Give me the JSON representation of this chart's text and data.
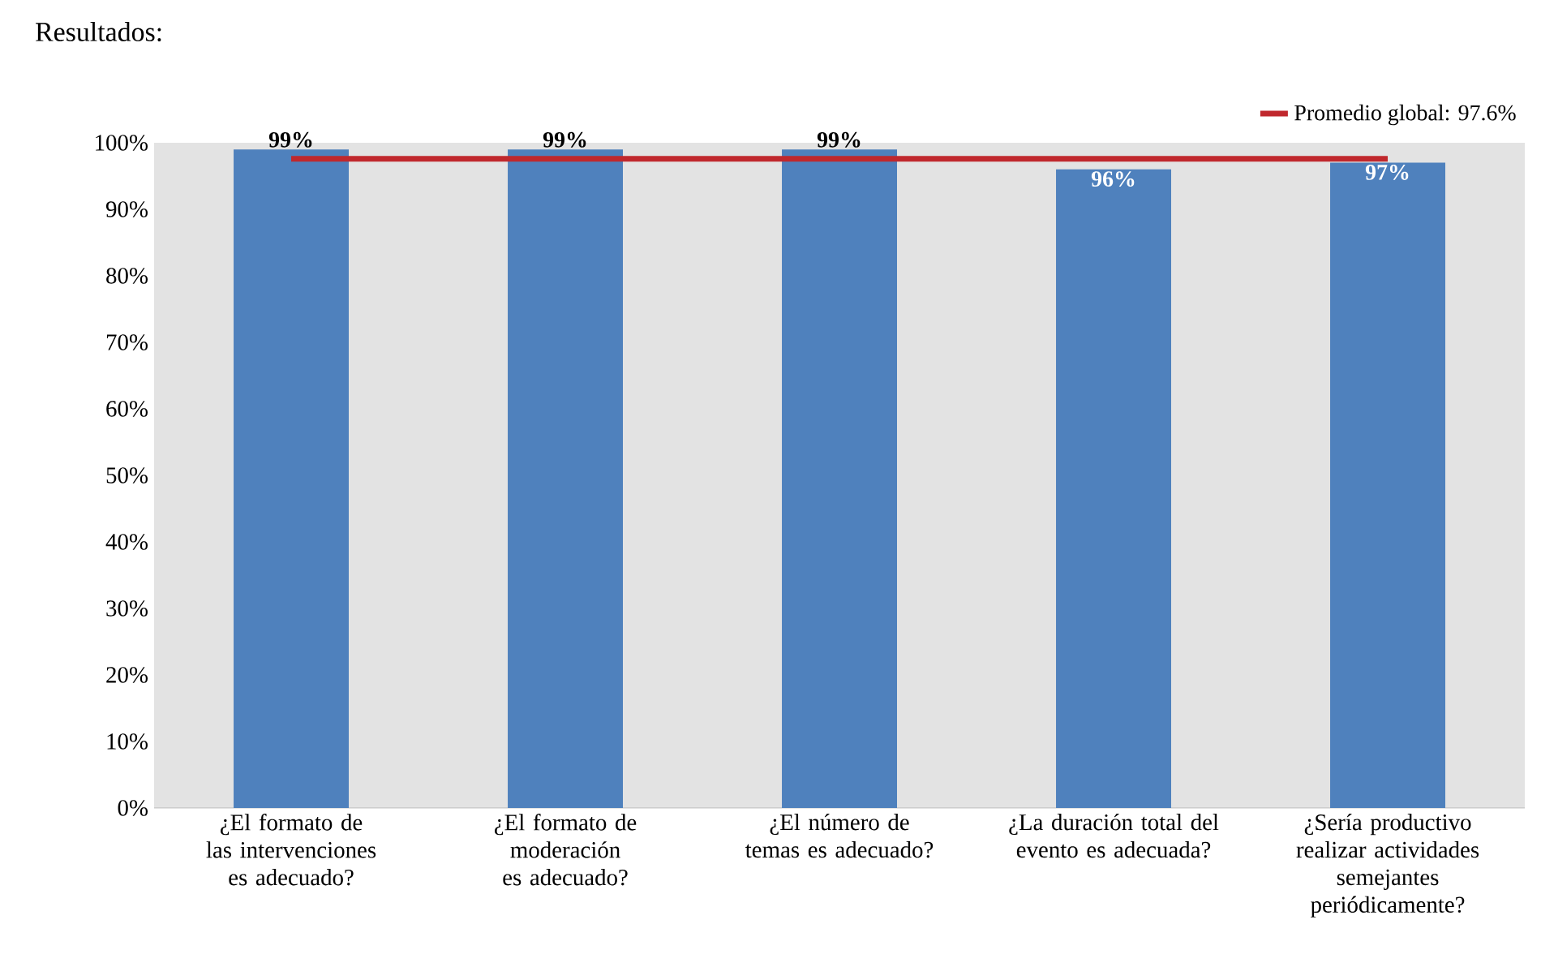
{
  "chart_data": {
    "type": "bar",
    "title": "Resultados:",
    "categories": [
      "¿El formato de las intervenciones es adecuado?",
      "¿El formato de moderación es adecuado?",
      "¿El número de temas es adecuado?",
      "¿La duración total del evento es adecuada?",
      "¿Sería productivo realizar actividades semejantes periódicamente?"
    ],
    "values": [
      99,
      99,
      99,
      96,
      97
    ],
    "color": "#4f81bd",
    "value_labels": [
      "99%",
      "99%",
      "99%",
      "96%",
      "97%"
    ],
    "ylim": [
      0,
      100
    ],
    "yticks": [
      {
        "value": 0,
        "label": "0%"
      },
      {
        "value": 10,
        "label": "10%"
      },
      {
        "value": 20,
        "label": "20%"
      },
      {
        "value": 30,
        "label": "30%"
      },
      {
        "value": 40,
        "label": "40%"
      },
      {
        "value": 50,
        "label": "50%"
      },
      {
        "value": 60,
        "label": "60%"
      },
      {
        "value": 70,
        "label": "70%"
      },
      {
        "value": 80,
        "label": "80%"
      },
      {
        "value": 90,
        "label": "90%"
      },
      {
        "value": 100,
        "label": "100%"
      }
    ],
    "ref_lines": [
      {
        "axis": "y",
        "value": 97.6,
        "label": "Promedio global: 97.6%",
        "color": "#c0282d"
      }
    ],
    "legend": "top right"
  }
}
